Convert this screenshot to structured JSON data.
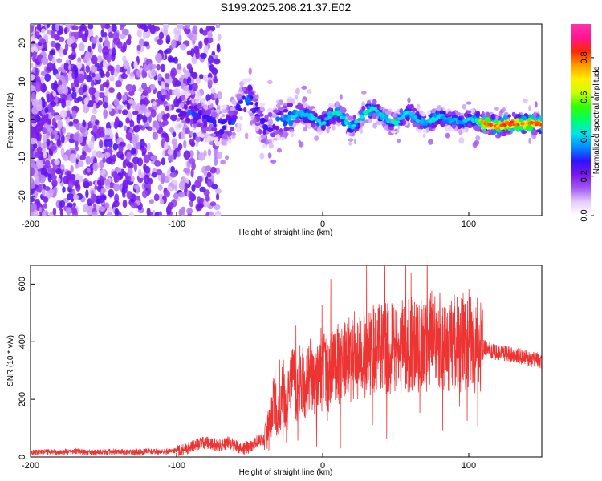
{
  "title": "S199.2025.208.21.37.E02",
  "chart_data": [
    {
      "type": "heatmap",
      "xlabel": "Height of straight line (km)",
      "ylabel": "Frequency (Hz)",
      "xlim": [
        -200,
        150
      ],
      "ylim": [
        -25,
        25
      ],
      "xticks": [
        "-200",
        "-100",
        "0",
        "100"
      ],
      "xtick_values": [
        -200,
        -100,
        0,
        100
      ],
      "yticks": [
        "-20",
        "-10",
        "0",
        "10",
        "20"
      ],
      "ytick_values": [
        -20,
        -10,
        0,
        10,
        20
      ],
      "colorbar": {
        "label": "Normalized spectral amplitude",
        "range": [
          0,
          0.97
        ],
        "ticks": [
          "0.0",
          "0.2",
          "0.4",
          "0.6",
          "0.8"
        ],
        "tick_values": [
          0,
          0.2,
          0.4,
          0.6,
          0.8
        ],
        "colormap": [
          "#ffffff",
          "#e6cdfa",
          "#a259f2",
          "#7a18e8",
          "#2f13ff",
          "#008cff",
          "#00e6e6",
          "#00ff66",
          "#33ff00",
          "#ccff00",
          "#ffee00",
          "#ff9a00",
          "#ff2a00",
          "#ff1493",
          "#ff33aa"
        ]
      },
      "ridge_track": {
        "x": [
          -100,
          -90,
          -80,
          -70,
          -60,
          -55,
          -50,
          -45,
          -40,
          -35,
          -30,
          -25,
          -20,
          -15,
          -10,
          -5,
          0,
          5,
          10,
          15,
          20,
          25,
          30,
          35,
          40,
          45,
          50,
          55,
          60,
          65,
          70,
          75,
          80,
          85,
          90,
          95,
          100,
          105,
          110,
          115,
          120,
          125,
          130,
          135,
          140,
          145,
          150
        ],
        "frequency": [
          3,
          2,
          0,
          -2,
          0,
          5,
          6,
          2,
          -2,
          -2,
          0,
          0,
          1,
          2,
          1,
          0,
          -1,
          1,
          2,
          0,
          -2,
          0,
          2,
          3,
          1,
          0,
          -1,
          1,
          2,
          0,
          -1,
          0,
          1,
          0,
          0,
          -1,
          0,
          0,
          -1,
          -1,
          -2,
          -1,
          -1,
          -1,
          -1,
          -1,
          -1
        ],
        "amplitude": [
          0.3,
          0.3,
          0.3,
          0.3,
          0.3,
          0.35,
          0.35,
          0.3,
          0.3,
          0.3,
          0.35,
          0.4,
          0.45,
          0.45,
          0.45,
          0.45,
          0.45,
          0.45,
          0.5,
          0.45,
          0.45,
          0.45,
          0.5,
          0.45,
          0.45,
          0.45,
          0.5,
          0.45,
          0.45,
          0.45,
          0.4,
          0.45,
          0.45,
          0.4,
          0.4,
          0.4,
          0.45,
          0.45,
          0.85,
          0.85,
          0.85,
          0.9,
          0.9,
          0.85,
          0.85,
          0.85,
          0.85
        ]
      }
    },
    {
      "type": "line",
      "xlabel": "Height of straight line (km)",
      "ylabel": "SNR (10 * v/v)",
      "xlim": [
        -200,
        150
      ],
      "ylim": [
        0,
        665
      ],
      "xticks": [
        "-200",
        "-100",
        "0",
        "100"
      ],
      "xtick_values": [
        -200,
        -100,
        0,
        100
      ],
      "yticks": [
        "0",
        "200",
        "400",
        "600"
      ],
      "ytick_values": [
        0,
        200,
        400,
        600
      ],
      "color": "#ee3333",
      "series": [
        {
          "x": [
            -200,
            -190,
            -180,
            -170,
            -160,
            -150,
            -140,
            -130,
            -120,
            -110,
            -100,
            -95,
            -90,
            -85,
            -80,
            -75,
            -70,
            -65,
            -60,
            -55,
            -50,
            -45,
            -40,
            -37,
            -35,
            -33,
            -31,
            -29,
            -27,
            -25,
            -23,
            -21,
            -19,
            -17,
            -15,
            -13,
            -11,
            -9,
            -7,
            -5,
            -3,
            -1,
            0,
            2,
            4,
            6,
            8,
            10,
            12,
            14,
            16,
            18,
            20,
            22,
            24,
            26,
            28,
            30,
            32,
            34,
            36,
            38,
            40,
            42,
            44,
            46,
            48,
            50,
            52,
            54,
            56,
            58,
            60,
            62,
            64,
            66,
            68,
            70,
            72,
            74,
            76,
            78,
            80,
            82,
            84,
            86,
            88,
            90,
            92,
            94,
            96,
            98,
            100,
            102,
            104,
            106,
            108,
            110,
            115,
            120,
            125,
            130,
            135,
            140,
            145,
            150
          ],
          "y": [
            15,
            18,
            16,
            20,
            15,
            17,
            18,
            16,
            19,
            18,
            22,
            28,
            35,
            45,
            50,
            45,
            40,
            50,
            40,
            30,
            35,
            55,
            60,
            100,
            140,
            230,
            120,
            180,
            250,
            160,
            220,
            280,
            240,
            230,
            300,
            260,
            240,
            300,
            280,
            240,
            300,
            260,
            300,
            320,
            280,
            320,
            300,
            340,
            300,
            320,
            330,
            350,
            330,
            360,
            330,
            340,
            360,
            340,
            350,
            380,
            360,
            370,
            380,
            360,
            390,
            370,
            380,
            390,
            370,
            380,
            400,
            380,
            400,
            390,
            380,
            370,
            390,
            400,
            380,
            410,
            400,
            380,
            410,
            390,
            400,
            380,
            410,
            400,
            390,
            380,
            400,
            390,
            420,
            400,
            380,
            400,
            390,
            380,
            370,
            360,
            360,
            355,
            350,
            345,
            340,
            330
          ]
        }
      ]
    }
  ]
}
